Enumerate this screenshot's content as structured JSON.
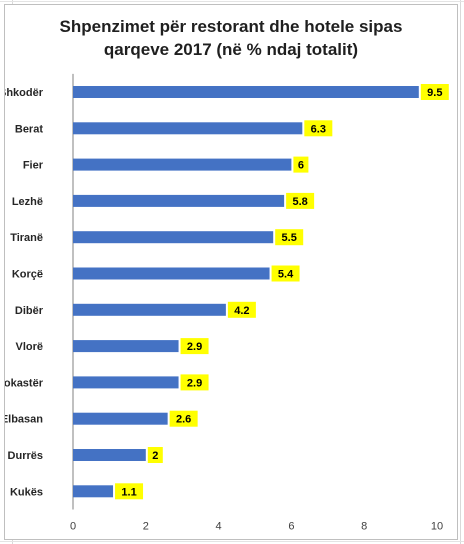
{
  "colors": {
    "bar": "#4472c4",
    "data_label_bg": "#ffff00",
    "axis_line": "#808080",
    "grid": "#d9d9d9"
  },
  "chart_data": {
    "type": "bar",
    "orientation": "horizontal",
    "title_line1": "Shpenzimet për restorant dhe hotele sipas",
    "title_line2": "qarqeve 2017  (në % ndaj totalit)",
    "categories": [
      "Shkodër",
      "Berat",
      "Fier",
      "Lezhë",
      "Tiranë",
      "Korçë",
      "Dibër",
      "Vlorë",
      "Gjirokastër",
      "Elbasan",
      "Durrës",
      "Kukës"
    ],
    "values": [
      9.5,
      6.3,
      6,
      5.8,
      5.5,
      5.4,
      4.2,
      2.9,
      2.9,
      2.6,
      2,
      1.1
    ],
    "value_labels": [
      "9.5",
      "6.3",
      "6",
      "5.8",
      "5.5",
      "5.4",
      "4.2",
      "2.9",
      "2.9",
      "2.6",
      "2",
      "1.1"
    ],
    "xlim": [
      0,
      10
    ],
    "xticks": [
      0,
      2,
      4,
      6,
      8,
      10
    ],
    "xtick_labels": [
      "0",
      "2",
      "4",
      "6",
      "8",
      "10"
    ],
    "xlabel": "",
    "ylabel": "",
    "grid": false,
    "legend": "none"
  }
}
